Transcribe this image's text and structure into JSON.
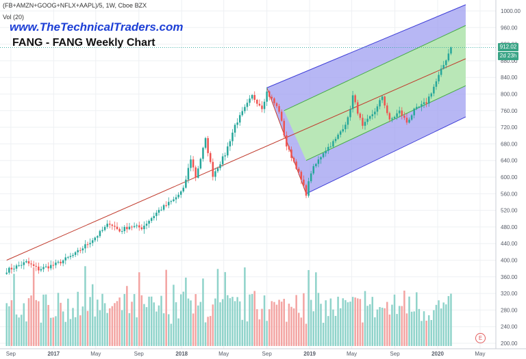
{
  "header": {
    "symbol_line": "(FB+AMZN+GOOG+NFLX+AAPL)/5, 1W, Cboe BZX",
    "volume_label": "Vol (20)",
    "watermark_url": "www.TheTechnicalTraders.com",
    "chart_title": "FANG - FANG Weekly Chart"
  },
  "price_labels": {
    "last": "912.02",
    "countdown": "2d 23h"
  },
  "event_badge": "E",
  "colors": {
    "up": "#26a69a",
    "down": "#ef5350",
    "vol_up": "#8fd3ca",
    "vol_down": "#f3a4a2",
    "channel_outer": "#9f9ff0",
    "channel_inner": "#b9ecb0",
    "channel_outer_line": "#3b3bd6",
    "channel_inner_line": "#44aa44",
    "trend_line": "#c0392b",
    "price_line": "#26a69a"
  },
  "chart_data": {
    "type": "candlestick",
    "x_ticks": [
      "Sep",
      "2017",
      "May",
      "Sep",
      "2018",
      "May",
      "Sep",
      "2019",
      "May",
      "Sep",
      "2020",
      "May"
    ],
    "y_ticks": [
      "1000.00",
      "960.00",
      "920.00",
      "880.00",
      "840.00",
      "800.00",
      "760.00",
      "720.00",
      "680.00",
      "640.00",
      "600.00",
      "560.00",
      "520.00",
      "480.00",
      "440.00",
      "400.00",
      "360.00",
      "320.00",
      "280.00",
      "240.00",
      "200.00"
    ],
    "ylim": [
      200,
      1010
    ],
    "last_price": 912.02,
    "price_path": [
      [
        "2016-08-20",
        375
      ],
      [
        "2016-10-15",
        395
      ],
      [
        "2016-11-19",
        378
      ],
      [
        "2017-01-07",
        390
      ],
      [
        "2017-03-04",
        415
      ],
      [
        "2017-05-06",
        460
      ],
      [
        "2017-06-10",
        490
      ],
      [
        "2017-07-08",
        470
      ],
      [
        "2017-08-05",
        482
      ],
      [
        "2017-09-09",
        478
      ],
      [
        "2017-10-28",
        520
      ],
      [
        "2017-12-09",
        545
      ],
      [
        "2018-01-06",
        570
      ],
      [
        "2018-01-27",
        645
      ],
      [
        "2018-02-10",
        600
      ],
      [
        "2018-03-10",
        690
      ],
      [
        "2018-03-31",
        605
      ],
      [
        "2018-05-05",
        655
      ],
      [
        "2018-06-02",
        725
      ],
      [
        "2018-06-23",
        755
      ],
      [
        "2018-07-21",
        795
      ],
      [
        "2018-08-18",
        768
      ],
      [
        "2018-09-01",
        805
      ],
      [
        "2018-10-06",
        760
      ],
      [
        "2018-10-27",
        675
      ],
      [
        "2018-11-24",
        625
      ],
      [
        "2018-12-22",
        560
      ],
      [
        "2019-01-05",
        612
      ],
      [
        "2019-02-09",
        660
      ],
      [
        "2019-03-16",
        690
      ],
      [
        "2019-04-20",
        740
      ],
      [
        "2019-05-04",
        795
      ],
      [
        "2019-06-01",
        720
      ],
      [
        "2019-07-13",
        768
      ],
      [
        "2019-07-27",
        795
      ],
      [
        "2019-08-17",
        735
      ],
      [
        "2019-09-14",
        758
      ],
      [
        "2019-10-05",
        732
      ],
      [
        "2019-10-26",
        760
      ],
      [
        "2019-11-30",
        780
      ],
      [
        "2019-12-28",
        830
      ],
      [
        "2020-01-18",
        870
      ],
      [
        "2020-02-08",
        912.02
      ]
    ],
    "trend_line": [
      [
        "2016-08-20",
        400
      ],
      [
        "2020-03-21",
        885
      ]
    ],
    "pitchfork_outer_upper": [
      [
        "2018-09-01",
        815
      ],
      [
        "2020-03-21",
        1015
      ]
    ],
    "pitchfork_inner_upper": [
      [
        "2018-10-20",
        760
      ],
      [
        "2020-03-21",
        965
      ]
    ],
    "pitchfork_inner_lower": [
      [
        "2018-12-22",
        640
      ],
      [
        "2020-03-21",
        820
      ]
    ],
    "pitchfork_outer_lower": [
      [
        "2018-12-22",
        560
      ],
      [
        "2020-03-21",
        745
      ]
    ],
    "pitchfork_anchor": [
      "2018-09-01",
      815
    ],
    "volume_scale_max": 100,
    "volume_description": "Weekly volume bars, colored by candle direction"
  }
}
